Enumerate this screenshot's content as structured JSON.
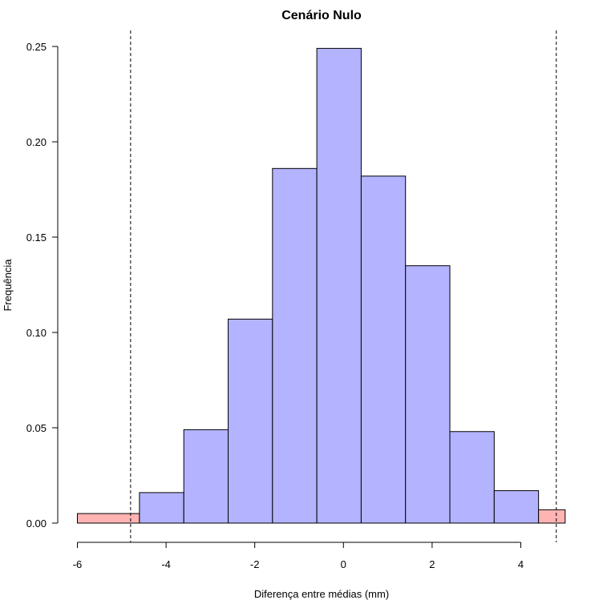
{
  "chart_data": {
    "type": "bar",
    "title": "Cenário Nulo",
    "xlabel": "Diferença entre médias (mm)",
    "ylabel": "Frequência",
    "xlim": [
      -6,
      5
    ],
    "ylim": [
      0,
      0.25
    ],
    "xticks": [
      "-6",
      "-4",
      "-2",
      "0",
      "2",
      "4"
    ],
    "yticks": [
      "0.00",
      "0.05",
      "0.10",
      "0.15",
      "0.20",
      "0.25"
    ],
    "bins": [
      {
        "x0": -6.0,
        "x1": -4.6,
        "value": 0.005,
        "color": "#ffb3b3"
      },
      {
        "x0": -4.6,
        "x1": -3.6,
        "value": 0.016,
        "color": "#b3b3ff"
      },
      {
        "x0": -3.6,
        "x1": -2.6,
        "value": 0.049,
        "color": "#b3b3ff"
      },
      {
        "x0": -2.6,
        "x1": -1.6,
        "value": 0.107,
        "color": "#b3b3ff"
      },
      {
        "x0": -1.6,
        "x1": -0.6,
        "value": 0.186,
        "color": "#b3b3ff"
      },
      {
        "x0": -0.6,
        "x1": 0.4,
        "value": 0.249,
        "color": "#b3b3ff"
      },
      {
        "x0": 0.4,
        "x1": 1.4,
        "value": 0.182,
        "color": "#b3b3ff"
      },
      {
        "x0": 1.4,
        "x1": 2.4,
        "value": 0.135,
        "color": "#b3b3ff"
      },
      {
        "x0": 2.4,
        "x1": 3.4,
        "value": 0.048,
        "color": "#b3b3ff"
      },
      {
        "x0": 3.4,
        "x1": 4.4,
        "value": 0.017,
        "color": "#b3b3ff"
      },
      {
        "x0": 4.4,
        "x1": 5.0,
        "value": 0.007,
        "color": "#ffb3b3"
      }
    ],
    "reference_lines": [
      -4.8,
      4.8
    ],
    "grid": false,
    "legend": "none"
  }
}
